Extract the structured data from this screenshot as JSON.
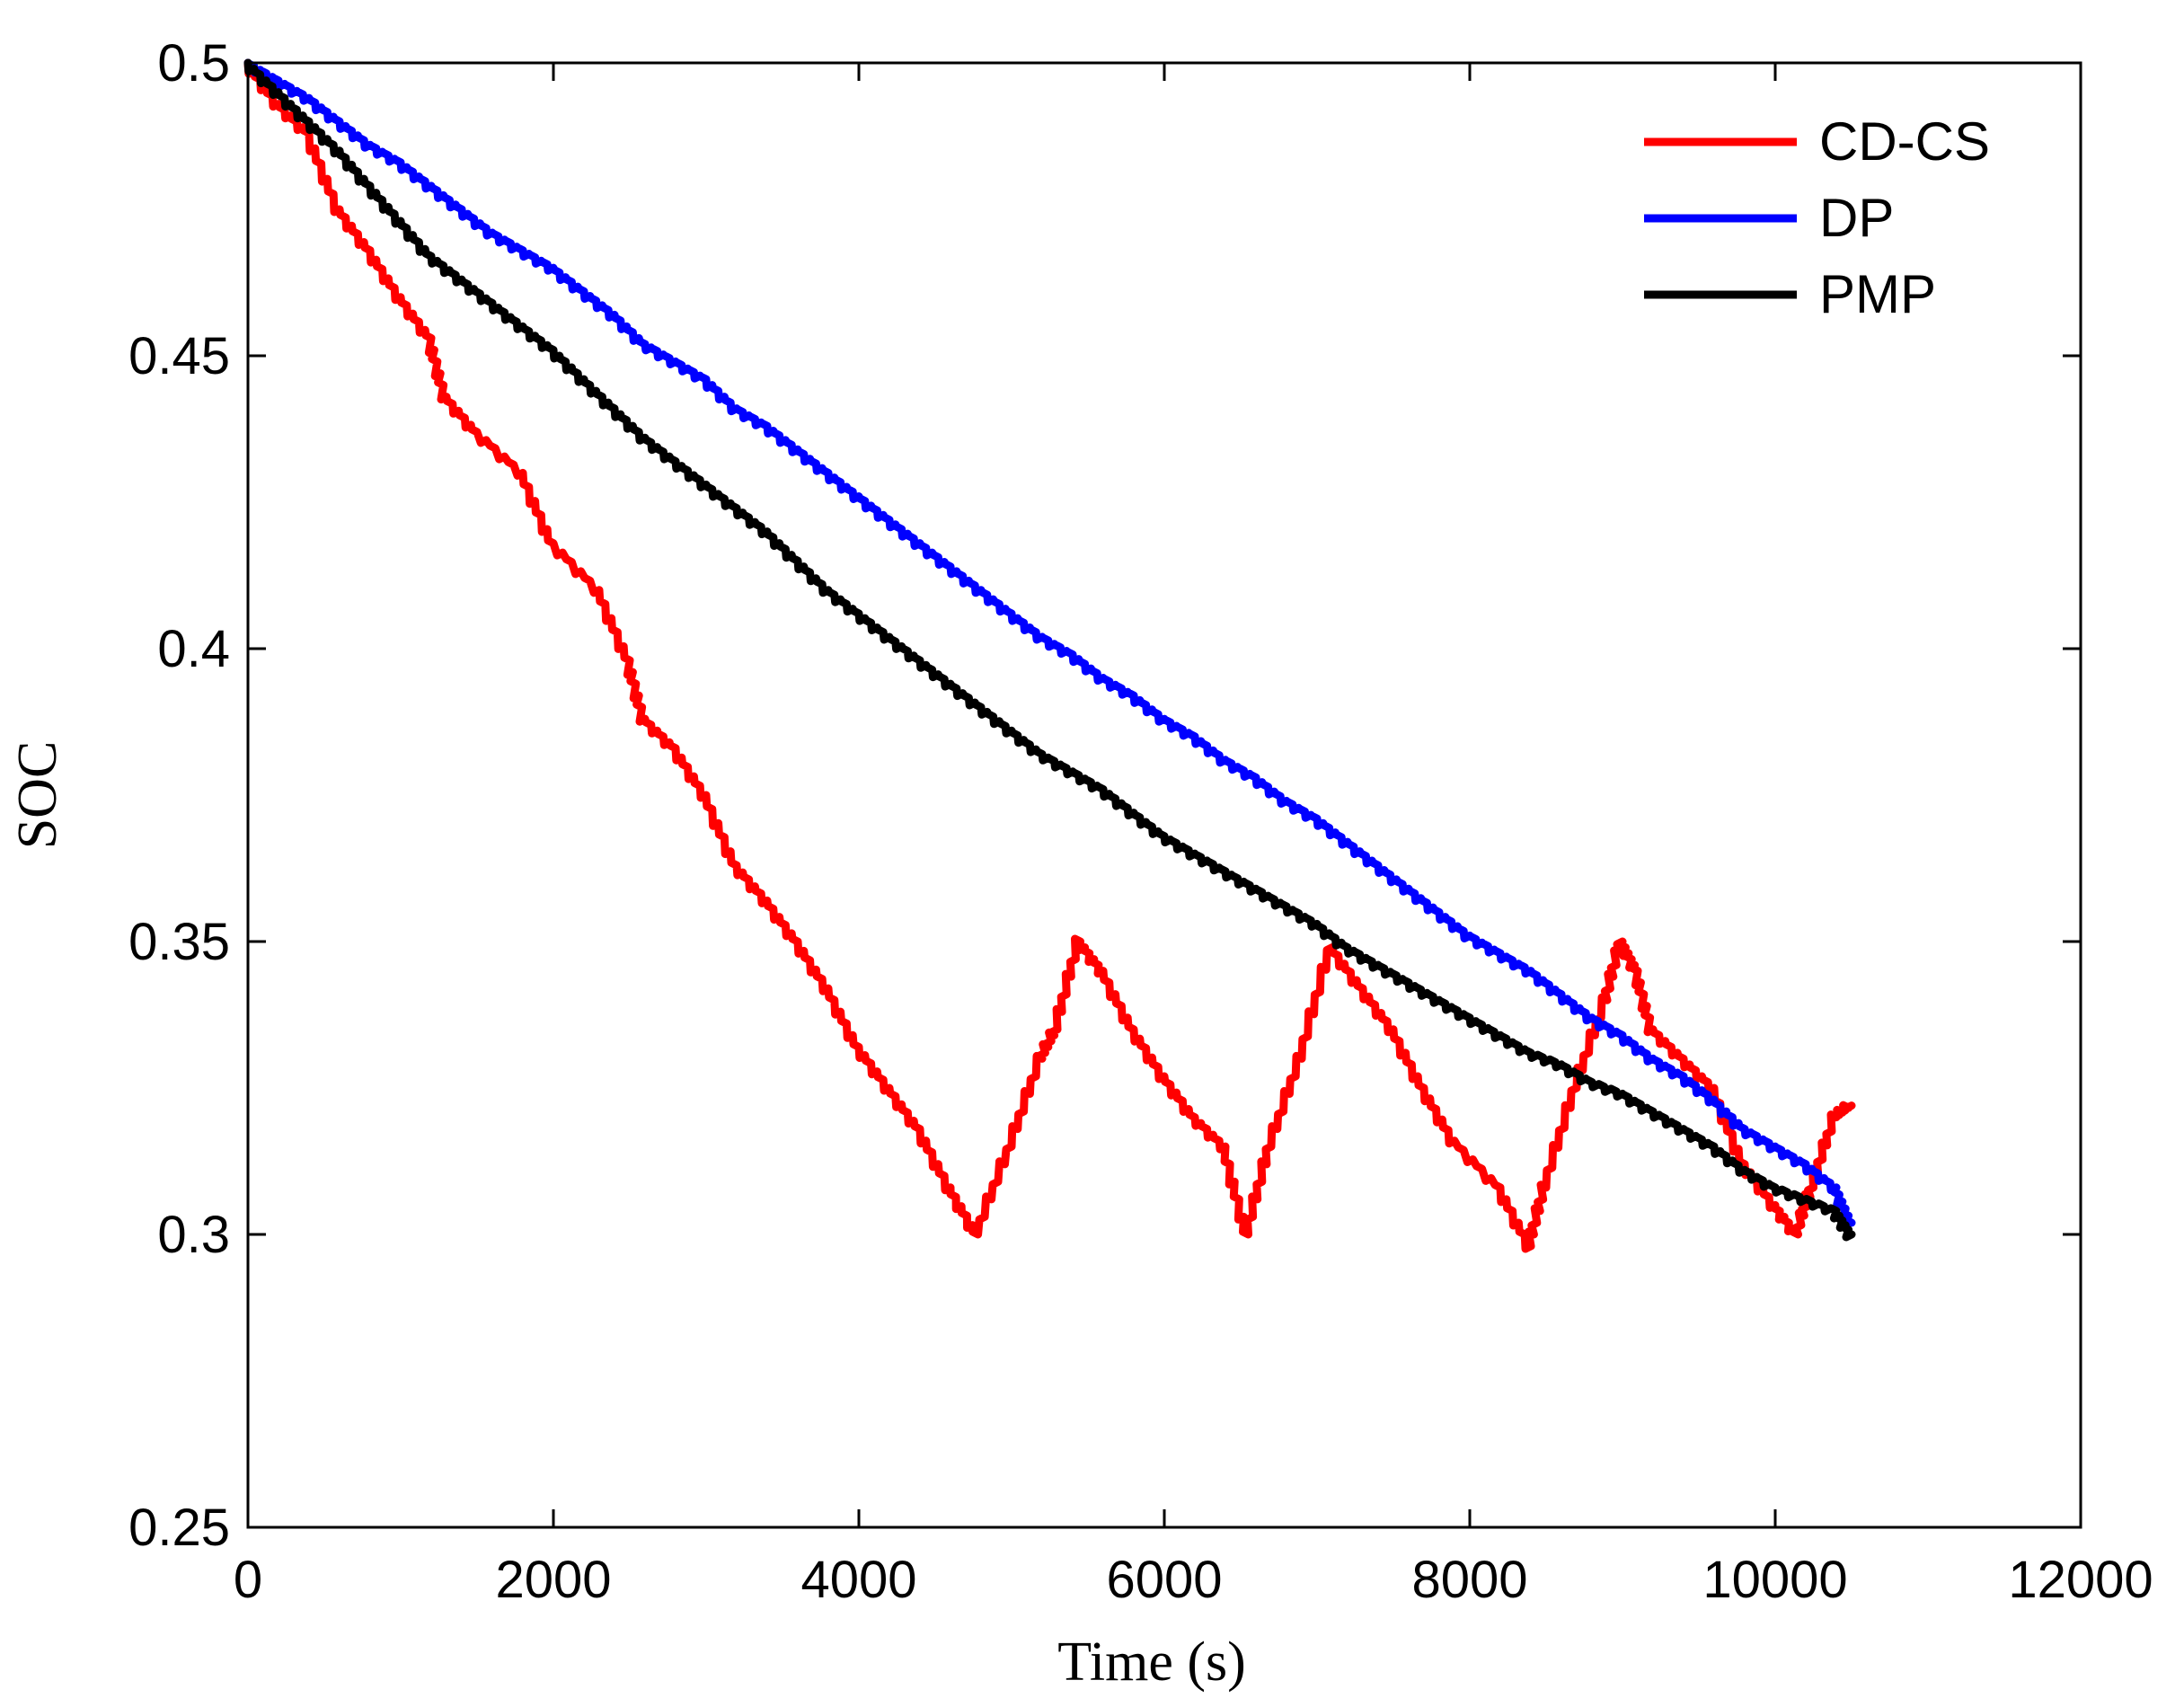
{
  "chart_data": {
    "type": "line",
    "title": "",
    "xlabel": "Time (s)",
    "ylabel": "SOC",
    "xlim": [
      0,
      12000
    ],
    "ylim": [
      0.25,
      0.5
    ],
    "xticks": [
      0,
      2000,
      4000,
      6000,
      8000,
      10000,
      12000
    ],
    "xtick_labels": [
      "0",
      "2000",
      "4000",
      "6000",
      "8000",
      "10000",
      "12000"
    ],
    "yticks": [
      0.25,
      0.3,
      0.35,
      0.4,
      0.45,
      0.5
    ],
    "ytick_labels": [
      "0.25",
      "0.3",
      "0.35",
      "0.4",
      "0.45",
      "0.5"
    ],
    "grid": false,
    "legend_position": "top-right",
    "series": [
      {
        "name": "CD-CS",
        "color": "#ff0000",
        "x": [
          0,
          200,
          400,
          600,
          800,
          1000,
          1200,
          1300,
          1500,
          1800,
          2000,
          2300,
          2500,
          2600,
          2800,
          3000,
          3200,
          3400,
          3600,
          3800,
          4000,
          4200,
          4400,
          4600,
          4780,
          5000,
          5200,
          5300,
          5450,
          5600,
          5800,
          6000,
          6200,
          6400,
          6550,
          6700,
          6900,
          7100,
          7300,
          7500,
          7700,
          7900,
          8200,
          8400,
          8500,
          8700,
          8900,
          9000,
          9100,
          9200,
          9400,
          9600,
          9800,
          10000,
          10150,
          10250,
          10400,
          10500
        ],
        "y": [
          0.5,
          0.493,
          0.488,
          0.475,
          0.468,
          0.46,
          0.453,
          0.443,
          0.437,
          0.43,
          0.418,
          0.41,
          0.398,
          0.388,
          0.383,
          0.375,
          0.363,
          0.357,
          0.35,
          0.342,
          0.332,
          0.325,
          0.318,
          0.308,
          0.3,
          0.315,
          0.33,
          0.335,
          0.35,
          0.345,
          0.335,
          0.327,
          0.32,
          0.315,
          0.3,
          0.315,
          0.33,
          0.349,
          0.342,
          0.335,
          0.325,
          0.316,
          0.308,
          0.298,
          0.308,
          0.325,
          0.34,
          0.35,
          0.345,
          0.335,
          0.33,
          0.325,
          0.312,
          0.305,
          0.3,
          0.308,
          0.32,
          0.322
        ]
      },
      {
        "name": "DP",
        "color": "#0000ff",
        "x": [
          0,
          200,
          400,
          600,
          800,
          1000,
          1200,
          1400,
          1600,
          1800,
          2000,
          2200,
          2400,
          2600,
          2800,
          3000,
          3200,
          3400,
          3600,
          3800,
          4000,
          4200,
          4400,
          4600,
          4800,
          5000,
          5200,
          5400,
          5600,
          5800,
          6000,
          6200,
          6400,
          6600,
          6800,
          7000,
          7200,
          7400,
          7600,
          7800,
          8000,
          8200,
          8400,
          8600,
          8800,
          9000,
          9200,
          9400,
          9600,
          9800,
          10000,
          10200,
          10400,
          10500
        ],
        "y": [
          0.5,
          0.497,
          0.494,
          0.49,
          0.486,
          0.483,
          0.479,
          0.475,
          0.471,
          0.468,
          0.465,
          0.461,
          0.457,
          0.452,
          0.449,
          0.446,
          0.441,
          0.438,
          0.434,
          0.43,
          0.426,
          0.422,
          0.418,
          0.414,
          0.41,
          0.406,
          0.402,
          0.399,
          0.395,
          0.392,
          0.388,
          0.385,
          0.381,
          0.378,
          0.374,
          0.371,
          0.367,
          0.363,
          0.359,
          0.355,
          0.351,
          0.348,
          0.345,
          0.341,
          0.337,
          0.334,
          0.33,
          0.327,
          0.323,
          0.318,
          0.315,
          0.312,
          0.308,
          0.302
        ]
      },
      {
        "name": "PMP",
        "color": "#000000",
        "x": [
          0,
          200,
          400,
          600,
          800,
          1000,
          1200,
          1400,
          1600,
          1800,
          2000,
          2200,
          2400,
          2600,
          2800,
          3000,
          3200,
          3400,
          3600,
          3800,
          4000,
          4200,
          4400,
          4600,
          4800,
          5000,
          5200,
          5400,
          5600,
          5800,
          6000,
          6200,
          6400,
          6600,
          6800,
          7000,
          7200,
          7400,
          7600,
          7800,
          8000,
          8200,
          8400,
          8600,
          8800,
          9000,
          9200,
          9400,
          9600,
          9800,
          10000,
          10200,
          10400,
          10500
        ],
        "y": [
          0.5,
          0.495,
          0.49,
          0.485,
          0.479,
          0.473,
          0.467,
          0.463,
          0.459,
          0.455,
          0.451,
          0.446,
          0.441,
          0.436,
          0.432,
          0.428,
          0.424,
          0.42,
          0.415,
          0.41,
          0.406,
          0.402,
          0.398,
          0.394,
          0.39,
          0.386,
          0.382,
          0.379,
          0.376,
          0.372,
          0.368,
          0.365,
          0.362,
          0.359,
          0.356,
          0.353,
          0.349,
          0.346,
          0.343,
          0.34,
          0.337,
          0.334,
          0.331,
          0.329,
          0.326,
          0.324,
          0.321,
          0.318,
          0.315,
          0.311,
          0.308,
          0.306,
          0.304,
          0.3
        ]
      }
    ]
  }
}
